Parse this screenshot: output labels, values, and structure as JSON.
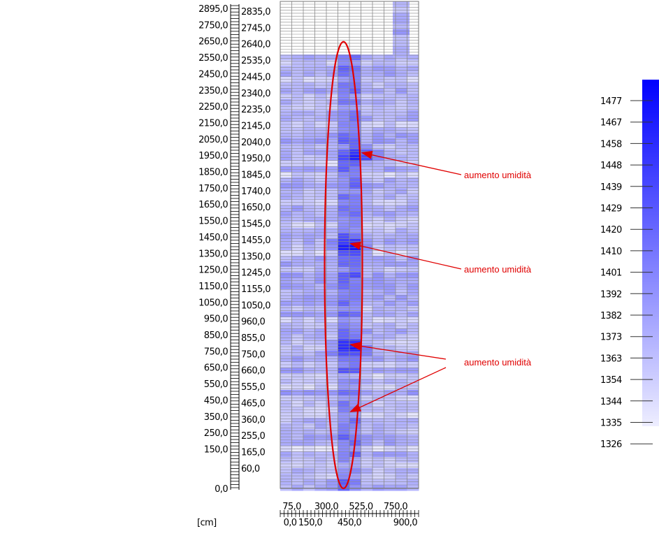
{
  "chart_data": {
    "type": "heatmap",
    "title": "",
    "unit_label": "[cm]",
    "y_axis_outer_ticks": [
      "2895,0",
      "2750,0",
      "2650,0",
      "2550,0",
      "2450,0",
      "2350,0",
      "2250,0",
      "2150,0",
      "2050,0",
      "1950,0",
      "1850,0",
      "1750,0",
      "1650,0",
      "1550,0",
      "1450,0",
      "1350,0",
      "1250,0",
      "1150,0",
      "1050,0",
      "950,0",
      "850,0",
      "750,0",
      "650,0",
      "550,0",
      "450,0",
      "350,0",
      "250,0",
      "150,0",
      "0,0"
    ],
    "y_axis_inner_ticks": [
      "2835,0",
      "2745,0",
      "2640,0",
      "2535,0",
      "2445,0",
      "2340,0",
      "2235,0",
      "2145,0",
      "2040,0",
      "1950,0",
      "1845,0",
      "1740,0",
      "1650,0",
      "1545,0",
      "1455,0",
      "1350,0",
      "1245,0",
      "1155,0",
      "1050,0",
      "960,0",
      "855,0",
      "750,0",
      "660,0",
      "555,0",
      "465,0",
      "360,0",
      "255,0",
      "165,0",
      "60,0"
    ],
    "x_axis_upper_ticks": [
      "75,0",
      "300,0",
      "525,0",
      "750,0"
    ],
    "x_axis_lower_ticks": [
      "0,0",
      "150,0",
      "450,0",
      "900,0"
    ],
    "x_range": [
      0,
      900
    ],
    "y_range": [
      0,
      2895
    ],
    "wet_zone_x_range": [
      375,
      525
    ],
    "highlight_ellipse": {
      "x_center": 375,
      "y_range": [
        0,
        2655
      ]
    },
    "colorbar": {
      "ticks": [
        "1477",
        "1467",
        "1458",
        "1448",
        "1439",
        "1429",
        "1420",
        "1410",
        "1401",
        "1392",
        "1382",
        "1373",
        "1363",
        "1354",
        "1344",
        "1335",
        "1326"
      ],
      "min": 1326,
      "max": 1486,
      "color_low": "#eeeeff",
      "color_high": "#0000ff"
    },
    "annotations": [
      {
        "text": "aumento umidità",
        "target": {
          "x": 525,
          "y": 1995
        }
      },
      {
        "text": "aumento umidità",
        "target": {
          "x": 450,
          "y": 1455
        }
      },
      {
        "text": "aumento umidità",
        "target": {
          "x": 450,
          "y": 855
        },
        "extra_target": {
          "x": 450,
          "y": 465
        }
      }
    ],
    "annotation_color": "#e00000",
    "grid": true
  }
}
